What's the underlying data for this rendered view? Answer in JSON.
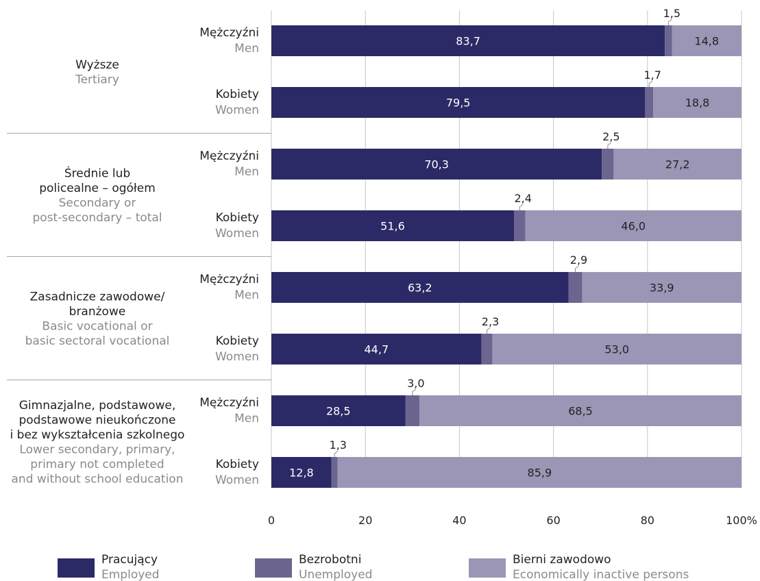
{
  "chart_data": {
    "type": "bar",
    "orientation": "horizontal",
    "stacked": true,
    "xlim": [
      0,
      100
    ],
    "x_ticks": [
      "0",
      "20",
      "40",
      "60",
      "80",
      "100%"
    ],
    "grid": true,
    "legend_position": "bottom",
    "series": [
      {
        "name": "Pracujący",
        "name_en": "Employed",
        "color": "#2b2a66",
        "label_color": "#ffffff"
      },
      {
        "name": "Bezrobotni",
        "name_en": "Unemployed",
        "color": "#6b6590",
        "label_color": "#222222"
      },
      {
        "name": "Bierni zawodowo",
        "name_en": "Economically inactive persons",
        "color": "#9b96b6",
        "label_color": "#222222"
      }
    ],
    "groups": [
      {
        "label_pl": [
          "Wyższe"
        ],
        "label_en": [
          "Tertiary"
        ],
        "bars": [
          {
            "sex_pl": "Mężczyźni",
            "sex_en": "Men",
            "values": [
              83.7,
              1.5,
              14.8
            ],
            "labels": [
              "83,7",
              "1,5",
              "14,8"
            ]
          },
          {
            "sex_pl": "Kobiety",
            "sex_en": "Women",
            "values": [
              79.5,
              1.7,
              18.8
            ],
            "labels": [
              "79,5",
              "1,7",
              "18,8"
            ]
          }
        ]
      },
      {
        "label_pl": [
          "Średnie lub",
          "policealne – ogółem"
        ],
        "label_en": [
          "Secondary or",
          "post-secondary – total"
        ],
        "bars": [
          {
            "sex_pl": "Mężczyźni",
            "sex_en": "Men",
            "values": [
              70.3,
              2.5,
              27.2
            ],
            "labels": [
              "70,3",
              "2,5",
              "27,2"
            ]
          },
          {
            "sex_pl": "Kobiety",
            "sex_en": "Women",
            "values": [
              51.6,
              2.4,
              46.0
            ],
            "labels": [
              "51,6",
              "2,4",
              "46,0"
            ]
          }
        ]
      },
      {
        "label_pl": [
          "Zasadnicze zawodowe/",
          "branżowe"
        ],
        "label_en": [
          "Basic vocational or",
          "basic sectoral vocational"
        ],
        "bars": [
          {
            "sex_pl": "Mężczyźni",
            "sex_en": "Men",
            "values": [
              63.2,
              2.9,
              33.9
            ],
            "labels": [
              "63,2",
              "2,9",
              "33,9"
            ]
          },
          {
            "sex_pl": "Kobiety",
            "sex_en": "Women",
            "values": [
              44.7,
              2.3,
              53.0
            ],
            "labels": [
              "44,7",
              "2,3",
              "53,0"
            ]
          }
        ]
      },
      {
        "label_pl": [
          "Gimnazjalne, podstawowe,",
          "podstawowe nieukończone",
          "i bez wykształcenia szkolnego"
        ],
        "label_en": [
          "Lower secondary, primary,",
          "primary not completed",
          "and without school education"
        ],
        "bars": [
          {
            "sex_pl": "Mężczyźni",
            "sex_en": "Men",
            "values": [
              28.5,
              3.0,
              68.5
            ],
            "labels": [
              "28,5",
              "3,0",
              "68,5"
            ]
          },
          {
            "sex_pl": "Kobiety",
            "sex_en": "Women",
            "values": [
              12.8,
              1.3,
              85.9
            ],
            "labels": [
              "12,8",
              "1,3",
              "85,9"
            ]
          }
        ]
      }
    ]
  }
}
